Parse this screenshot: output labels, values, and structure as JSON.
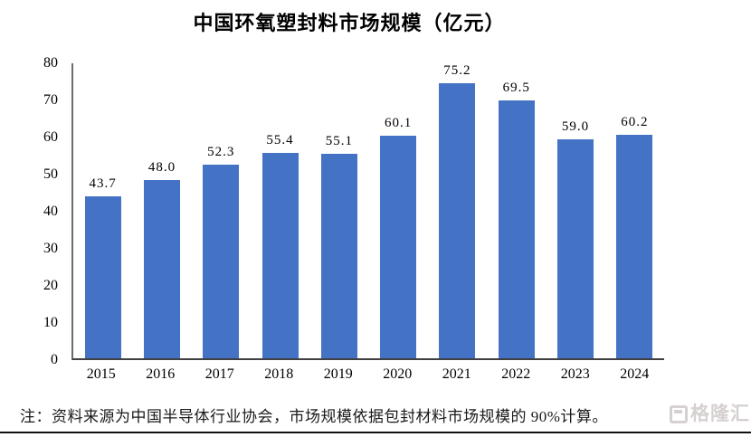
{
  "chart_data": {
    "type": "bar",
    "title": "中国环氧塑封料市场规模（亿元）",
    "categories": [
      "2015",
      "2016",
      "2017",
      "2018",
      "2019",
      "2020",
      "2021",
      "2022",
      "2023",
      "2024"
    ],
    "values": [
      43.7,
      48.0,
      52.3,
      55.4,
      55.1,
      60.1,
      75.2,
      69.5,
      59.0,
      60.2
    ],
    "value_labels": [
      "43.7",
      "48.0",
      "52.3",
      "55.4",
      "55.1",
      "60.1",
      "75.2",
      "69.5",
      "59.0",
      "60.2"
    ],
    "xlabel": "",
    "ylabel": "",
    "ylim": [
      0,
      80
    ],
    "yticks": [
      0,
      10,
      20,
      30,
      40,
      50,
      60,
      70,
      80
    ],
    "grid": false,
    "legend": null,
    "bar_color": "#4472C4",
    "axis_color": "#595959",
    "data_label_position": "above-bar"
  },
  "note": {
    "text": "注：资料来源为中国半导体行业协会，市场规模依据包封材料市场规模的 90%计算。"
  },
  "watermark": {
    "text": "格隆汇",
    "color": "#d6d0d0"
  }
}
